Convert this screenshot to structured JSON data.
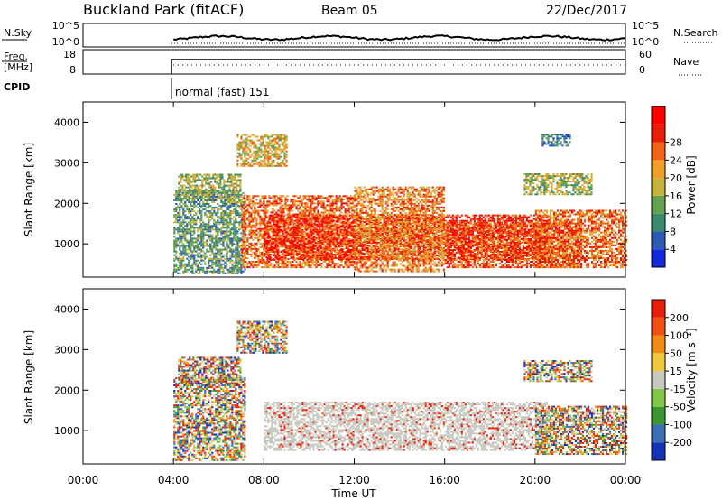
{
  "header": {
    "station": "Buckland Park (fitACF)",
    "beam": "Beam 05",
    "date": "22/Dec/2017"
  },
  "top_panels": {
    "nsky_label": "N.Sky",
    "nsky_ticks": [
      "10^5",
      "10^0"
    ],
    "nsearch_label": "N.Search",
    "nsearch_ticks": [
      "10^5",
      "10^0"
    ],
    "freq_label": "Freq.",
    "freq_unit": "[MHz]",
    "freq_ticks": [
      "18",
      "8"
    ],
    "nave_label": "Nave",
    "nave_ticks": [
      "60",
      "0"
    ],
    "cpid_label": "CPID",
    "cpid_value": "normal (fast) 151"
  },
  "chart_data": [
    {
      "type": "heatmap",
      "quantity": "Power",
      "ylabel": "Slant Range [km]",
      "colorbar_label": "Power [dB]",
      "colorbar_ticks": [
        "4",
        "8",
        "12",
        "16",
        "20",
        "24",
        "28"
      ],
      "colorbar_range": [
        0,
        32
      ],
      "colors": [
        "#1428dc",
        "#2d5ab4",
        "#3c8a6e",
        "#64a050",
        "#c8b43c",
        "#f0a028",
        "#f06414",
        "#e61e0a",
        "#ff0000"
      ],
      "xlim": [
        0,
        24
      ],
      "ylim": [
        180,
        4500
      ],
      "yticks": [
        1000,
        2000,
        3000,
        4000
      ],
      "data_start_hour": 4,
      "echo_regions": [
        {
          "t0": 4.0,
          "t1": 7.2,
          "r0": 250,
          "r1": 2300,
          "level": 10
        },
        {
          "t0": 4.2,
          "t1": 7.0,
          "r0": 2100,
          "r1": 2700,
          "level": 14
        },
        {
          "t0": 6.8,
          "t1": 9.0,
          "r0": 2900,
          "r1": 3700,
          "level": 18
        },
        {
          "t0": 7.0,
          "t1": 12.0,
          "r0": 400,
          "r1": 2200,
          "level": 24
        },
        {
          "t0": 8.0,
          "t1": 20.5,
          "r0": 600,
          "r1": 1700,
          "level": 28
        },
        {
          "t0": 12.0,
          "t1": 16.0,
          "r0": 300,
          "r1": 2400,
          "level": 22
        },
        {
          "t0": 16.0,
          "t1": 22.0,
          "r0": 400,
          "r1": 1500,
          "level": 26
        },
        {
          "t0": 19.5,
          "t1": 22.5,
          "r0": 2200,
          "r1": 2700,
          "level": 14
        },
        {
          "t0": 20.0,
          "t1": 24.0,
          "r0": 400,
          "r1": 1800,
          "level": 24
        },
        {
          "t0": 20.3,
          "t1": 21.5,
          "r0": 3400,
          "r1": 3700,
          "level": 6
        }
      ]
    },
    {
      "type": "heatmap",
      "quantity": "Velocity",
      "ylabel": "Slant Range [km]",
      "colorbar_label": "Velocity [m s⁻¹]",
      "colorbar_ticks": [
        "200",
        "100",
        "50",
        "15",
        "-15",
        "-50",
        "-100",
        "-200"
      ],
      "colors": [
        "#1432b4",
        "#3c6eb4",
        "#3c9632",
        "#82c846",
        "#c8c8c0",
        "#f0c83c",
        "#f08c14",
        "#f05014",
        "#e61e0a"
      ],
      "xlim": [
        0,
        24
      ],
      "ylim": [
        180,
        4500
      ],
      "yticks": [
        1000,
        2000,
        3000,
        4000
      ],
      "xticks": [
        "00:00",
        "04:00",
        "08:00",
        "12:00",
        "16:00",
        "20:00",
        "00:00"
      ],
      "xlabel": "Time UT",
      "echo_regions": [
        {
          "t0": 4.0,
          "t1": 7.2,
          "r0": 250,
          "r1": 2300,
          "vel": "mixed"
        },
        {
          "t0": 4.2,
          "t1": 7.0,
          "r0": 2100,
          "r1": 2800,
          "vel": "mixed"
        },
        {
          "t0": 6.8,
          "t1": 9.0,
          "r0": 2900,
          "r1": 3700,
          "vel": "mixed"
        },
        {
          "t0": 8.0,
          "t1": 20.5,
          "r0": 500,
          "r1": 1700,
          "vel": "low"
        },
        {
          "t0": 19.5,
          "t1": 22.5,
          "r0": 2200,
          "r1": 2700,
          "vel": "mixed"
        },
        {
          "t0": 20.0,
          "t1": 24.0,
          "r0": 400,
          "r1": 1600,
          "vel": "mixed"
        }
      ]
    }
  ]
}
